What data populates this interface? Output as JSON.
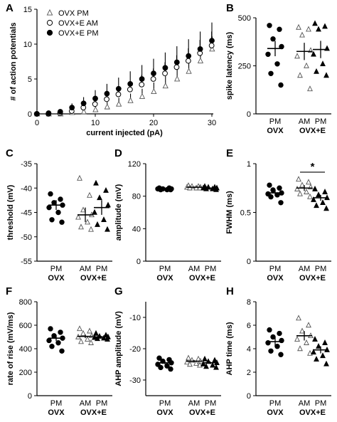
{
  "chart_data": [
    {
      "id": "A",
      "type": "scatter",
      "letter": "A",
      "xlabel": "current injected (pA)",
      "ylabel": "# of action potentials",
      "xlim": [
        0,
        30
      ],
      "ylim": [
        0,
        15
      ],
      "xticks": [
        0,
        10,
        20,
        30
      ],
      "yticks": [
        0,
        5,
        10,
        15
      ],
      "x": [
        0,
        2,
        4,
        6,
        8,
        10,
        12,
        14,
        16,
        18,
        20,
        22,
        24,
        26,
        28,
        30
      ],
      "legend_position": "top-left",
      "series": [
        {
          "name": "OVX PM",
          "marker": "triangle-open",
          "values": [
            0,
            0,
            0,
            0.2,
            0.3,
            0.6,
            1.0,
            1.4,
            1.9,
            2.5,
            3.2,
            4.0,
            5.0,
            6.1,
            7.6,
            9.3
          ],
          "errors": [
            0,
            0,
            0,
            0.2,
            0.3,
            0.5,
            0.7,
            0.9,
            1.0,
            1.1,
            1.3,
            1.4,
            1.5,
            1.6,
            1.7,
            1.8
          ]
        },
        {
          "name": "OVX+E AM",
          "marker": "circle-open",
          "values": [
            0,
            0,
            0.1,
            0.4,
            0.9,
            1.4,
            2.1,
            2.8,
            3.5,
            4.2,
            5.0,
            5.8,
            6.7,
            7.6,
            8.7,
            9.8
          ],
          "errors": [
            0,
            0,
            0.1,
            0.3,
            0.5,
            0.7,
            0.9,
            1.1,
            1.2,
            1.4,
            1.5,
            1.6,
            1.7,
            1.8,
            1.9,
            2.0
          ]
        },
        {
          "name": "OVX+E PM",
          "marker": "circle-filled",
          "values": [
            0,
            0.1,
            0.3,
            0.9,
            1.5,
            2.2,
            2.9,
            3.6,
            4.3,
            5.0,
            5.8,
            6.6,
            7.4,
            8.3,
            9.3,
            10.5
          ],
          "errors": [
            0,
            0.1,
            0.3,
            0.6,
            0.9,
            1.2,
            1.4,
            1.6,
            1.8,
            2.0,
            2.1,
            2.2,
            2.3,
            2.4,
            2.5,
            2.6
          ]
        }
      ]
    },
    {
      "id": "B",
      "type": "scatter",
      "letter": "B",
      "ylabel": "spike latency (ms)",
      "ylim": [
        0,
        500
      ],
      "yticks": [
        0,
        250,
        500
      ],
      "categories": [
        "PM",
        "AM",
        "PM"
      ],
      "group_labels": [
        "OVX",
        "OVX+E"
      ],
      "series": [
        {
          "name": "OVX PM",
          "marker": "circle-filled",
          "mean": 340,
          "sem": 40,
          "values": [
            460,
            440,
            390,
            350,
            310,
            260,
            210,
            150
          ]
        },
        {
          "name": "OVX+E AM",
          "marker": "triangle-open",
          "mean": 325,
          "sem": 45,
          "values": [
            450,
            440,
            410,
            330,
            300,
            250,
            200,
            130
          ]
        },
        {
          "name": "OVX+E PM",
          "marker": "triangle-filled",
          "mean": 335,
          "sem": 45,
          "values": [
            470,
            455,
            440,
            340,
            310,
            260,
            220,
            200
          ]
        }
      ]
    },
    {
      "id": "C",
      "type": "scatter",
      "letter": "C",
      "ylabel": "threshold (mV)",
      "ylim": [
        -55,
        -35
      ],
      "yticks": [
        -55,
        -50,
        -45,
        -40,
        -35
      ],
      "categories": [
        "PM",
        "AM",
        "PM"
      ],
      "group_labels": [
        "OVX",
        "OVX+E"
      ],
      "series": [
        {
          "name": "OVX PM",
          "marker": "circle-filled",
          "mean": -43.5,
          "sem": 1.0,
          "values": [
            -41.2,
            -42.3,
            -43.0,
            -43.5,
            -44.0,
            -45.0,
            -46.5,
            -47.0
          ]
        },
        {
          "name": "OVX+E AM",
          "marker": "triangle-open",
          "mean": -45.5,
          "sem": 1.5,
          "values": [
            -38.0,
            -41.5,
            -44.5,
            -45.5,
            -46.0,
            -47.0,
            -48.0,
            -48.5
          ]
        },
        {
          "name": "OVX+E PM",
          "marker": "triangle-filled",
          "mean": -44.0,
          "sem": 1.5,
          "values": [
            -39.0,
            -40.5,
            -42.0,
            -43.5,
            -45.0,
            -46.5,
            -47.5,
            -48.5
          ]
        }
      ]
    },
    {
      "id": "D",
      "type": "scatter",
      "letter": "D",
      "ylabel": "amplitude (mV)",
      "ylim": [
        0,
        120
      ],
      "yticks": [
        0,
        40,
        80,
        120
      ],
      "categories": [
        "PM",
        "AM",
        "PM"
      ],
      "group_labels": [
        "OVX",
        "OVX+E"
      ],
      "series": [
        {
          "name": "OVX PM",
          "marker": "circle-filled",
          "mean": 89,
          "sem": 0.7,
          "values": [
            90,
            90,
            89,
            89,
            89,
            88,
            88,
            88
          ]
        },
        {
          "name": "OVX+E AM",
          "marker": "triangle-open",
          "mean": 91,
          "sem": 0.7,
          "values": [
            93,
            92,
            92,
            91,
            91,
            90,
            90,
            90
          ]
        },
        {
          "name": "OVX+E PM",
          "marker": "triangle-filled",
          "mean": 90,
          "sem": 0.7,
          "values": [
            92,
            91,
            91,
            90,
            90,
            89,
            89,
            88
          ]
        }
      ]
    },
    {
      "id": "E",
      "type": "scatter",
      "letter": "E",
      "ylabel": "FWHM (ms)",
      "ylim": [
        0,
        1.0
      ],
      "yticks": [
        0,
        0.5,
        1.0
      ],
      "categories": [
        "PM",
        "AM",
        "PM"
      ],
      "group_labels": [
        "OVX",
        "OVX+E"
      ],
      "significance": {
        "label": "*",
        "from": 1,
        "to": 2
      },
      "series": [
        {
          "name": "OVX PM",
          "marker": "circle-filled",
          "mean": 0.7,
          "sem": 0.03,
          "values": [
            0.78,
            0.75,
            0.73,
            0.7,
            0.69,
            0.68,
            0.66,
            0.6
          ]
        },
        {
          "name": "OVX+E AM",
          "marker": "triangle-open",
          "mean": 0.75,
          "sem": 0.03,
          "values": [
            0.84,
            0.81,
            0.78,
            0.76,
            0.74,
            0.71,
            0.69,
            0.66
          ]
        },
        {
          "name": "OVX+E PM",
          "marker": "triangle-filled",
          "mean": 0.65,
          "sem": 0.03,
          "values": [
            0.74,
            0.71,
            0.68,
            0.65,
            0.63,
            0.6,
            0.57,
            0.54
          ]
        }
      ]
    },
    {
      "id": "F",
      "type": "scatter",
      "letter": "F",
      "ylabel": "rate of rise (mV/ms)",
      "ylim": [
        0,
        800
      ],
      "yticks": [
        0,
        200,
        400,
        600,
        800
      ],
      "categories": [
        "PM",
        "AM",
        "PM"
      ],
      "group_labels": [
        "OVX",
        "OVX+E"
      ],
      "series": [
        {
          "name": "OVX PM",
          "marker": "circle-filled",
          "mean": 490,
          "sem": 25,
          "values": [
            570,
            540,
            510,
            490,
            470,
            450,
            420,
            380
          ]
        },
        {
          "name": "OVX+E AM",
          "marker": "triangle-open",
          "mean": 505,
          "sem": 15,
          "values": [
            570,
            550,
            530,
            510,
            500,
            480,
            460,
            450
          ]
        },
        {
          "name": "OVX+E PM",
          "marker": "triangle-filled",
          "mean": 500,
          "sem": 8,
          "values": [
            530,
            515,
            505,
            500,
            495,
            490,
            485,
            480
          ]
        }
      ]
    },
    {
      "id": "G",
      "type": "scatter",
      "letter": "G",
      "ylabel": "AHP amplitude (mV)",
      "ylim": [
        -35,
        -5
      ],
      "yticks": [
        -30,
        -20,
        -10
      ],
      "categories": [
        "PM",
        "AM",
        "PM"
      ],
      "group_labels": [
        "OVX",
        "OVX+E"
      ],
      "series": [
        {
          "name": "OVX PM",
          "marker": "circle-filled",
          "mean": -24.5,
          "sem": 0.5,
          "values": [
            -23.0,
            -23.5,
            -24.0,
            -24.5,
            -25.0,
            -25.5,
            -26.0,
            -26.5
          ]
        },
        {
          "name": "OVX+E AM",
          "marker": "triangle-open",
          "mean": -24.0,
          "sem": 0.4,
          "values": [
            -23.0,
            -23.3,
            -23.7,
            -24.0,
            -24.3,
            -24.7,
            -25.0,
            -25.3
          ]
        },
        {
          "name": "OVX+E PM",
          "marker": "triangle-filled",
          "mean": -24.5,
          "sem": 0.4,
          "values": [
            -23.3,
            -23.7,
            -24.1,
            -24.5,
            -24.9,
            -25.3,
            -25.7,
            -26.0
          ]
        }
      ]
    },
    {
      "id": "H",
      "type": "scatter",
      "letter": "H",
      "ylabel": "AHP time (ms)",
      "ylim": [
        0,
        8
      ],
      "yticks": [
        0,
        2,
        4,
        6,
        8
      ],
      "categories": [
        "PM",
        "AM",
        "PM"
      ],
      "group_labels": [
        "OVX",
        "OVX+E"
      ],
      "series": [
        {
          "name": "OVX PM",
          "marker": "circle-filled",
          "mean": 4.6,
          "sem": 0.4,
          "values": [
            5.6,
            5.3,
            5.0,
            4.7,
            4.5,
            4.2,
            3.8,
            3.5
          ]
        },
        {
          "name": "OVX+E AM",
          "marker": "triangle-open",
          "mean": 5.1,
          "sem": 0.4,
          "values": [
            6.6,
            6.0,
            5.5,
            5.1,
            4.8,
            4.5,
            4.0,
            3.6
          ]
        },
        {
          "name": "OVX+E PM",
          "marker": "triangle-filled",
          "mean": 3.9,
          "sem": 0.3,
          "values": [
            4.8,
            4.5,
            4.2,
            3.9,
            3.7,
            3.4,
            3.1,
            2.7
          ]
        }
      ]
    }
  ]
}
